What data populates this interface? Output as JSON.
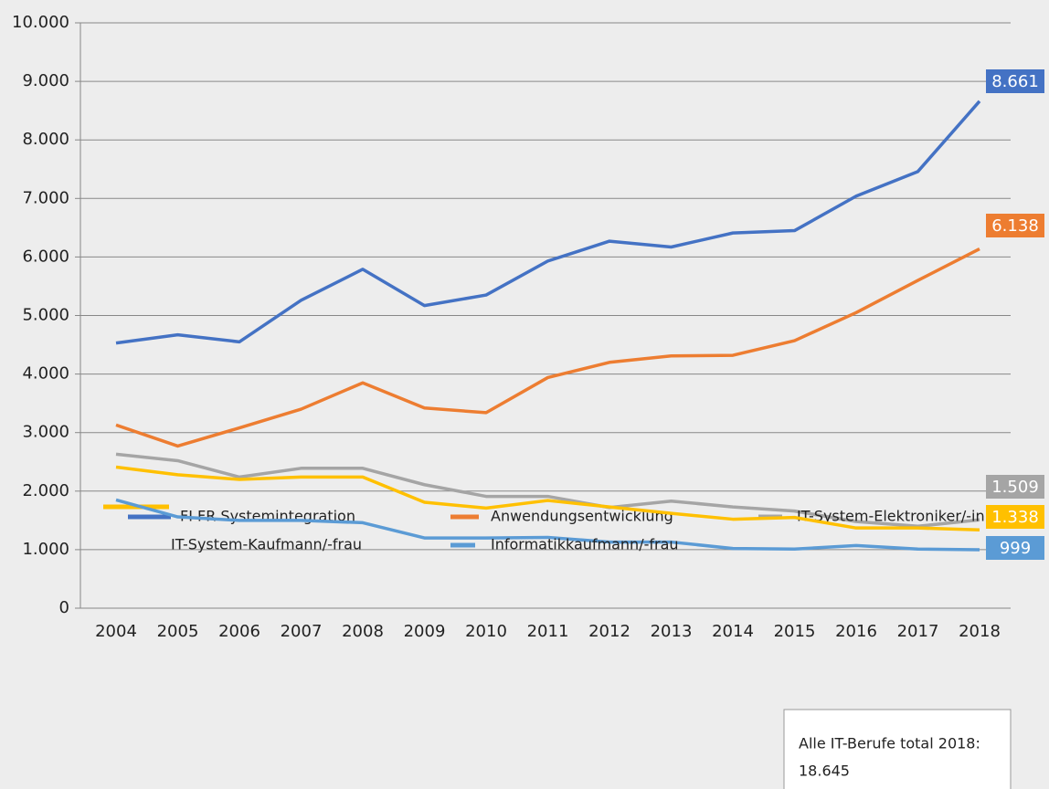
{
  "chart_data": {
    "type": "line",
    "categories": [
      "2004",
      "2005",
      "2006",
      "2007",
      "2008",
      "2009",
      "2010",
      "2011",
      "2012",
      "2013",
      "2014",
      "2015",
      "2016",
      "2017",
      "2018"
    ],
    "series": [
      {
        "name": "FI FR Systemintegration",
        "color": "#4472c4",
        "values": [
          4530,
          4670,
          4550,
          5260,
          5790,
          5170,
          5350,
          5930,
          6270,
          6170,
          6410,
          6450,
          7040,
          7460,
          8661
        ],
        "value_labels": [
          null,
          null,
          null,
          null,
          null,
          null,
          null,
          null,
          null,
          null,
          null,
          null,
          null,
          null,
          "8.661"
        ]
      },
      {
        "name": "Anwendungsentwicklung",
        "color": "#ed7d31",
        "values": [
          3130,
          2770,
          3080,
          3400,
          3850,
          3420,
          3340,
          3940,
          4200,
          4310,
          4320,
          4570,
          5050,
          5600,
          6138
        ],
        "value_labels": [
          null,
          null,
          null,
          null,
          null,
          null,
          null,
          null,
          null,
          null,
          null,
          null,
          null,
          null,
          "6.138"
        ]
      },
      {
        "name": "IT-System-Elektroniker/-in",
        "color": "#a5a5a5",
        "values": [
          2630,
          2520,
          2240,
          2390,
          2390,
          2110,
          1910,
          1910,
          1720,
          1830,
          1730,
          1660,
          1480,
          1400,
          1509
        ],
        "value_labels": [
          null,
          null,
          null,
          null,
          null,
          null,
          null,
          null,
          null,
          null,
          null,
          null,
          null,
          null,
          "1.509"
        ]
      },
      {
        "name": "IT-System-Kaufmann/-frau",
        "color": "#ffc000",
        "values": [
          2410,
          2280,
          2200,
          2240,
          2240,
          1810,
          1710,
          1840,
          1730,
          1620,
          1520,
          1550,
          1370,
          1370,
          1338
        ],
        "value_labels": [
          null,
          null,
          null,
          null,
          null,
          null,
          null,
          null,
          null,
          null,
          null,
          null,
          null,
          null,
          "1.338"
        ]
      },
      {
        "name": "Informatikkaufmann/-frau",
        "color": "#5b9bd5",
        "values": [
          1850,
          1560,
          1500,
          1500,
          1460,
          1200,
          1200,
          1210,
          1130,
          1130,
          1020,
          1010,
          1070,
          1010,
          999
        ],
        "value_labels": [
          null,
          null,
          null,
          null,
          null,
          null,
          null,
          null,
          null,
          null,
          null,
          null,
          null,
          null,
          "999"
        ]
      }
    ],
    "ylim": [
      0,
      10000
    ],
    "yticks": [
      0,
      {
        "value": 1000,
        "label": "1.000"
      },
      {
        "value": 2000,
        "label": "2.000"
      },
      {
        "value": 3000,
        "label": "3.000"
      },
      {
        "value": 4000,
        "label": "4.000"
      },
      {
        "value": 5000,
        "label": "5.000"
      },
      {
        "value": 6000,
        "label": "6.000"
      },
      {
        "value": 7000,
        "label": "7.000"
      },
      {
        "value": 8000,
        "label": "8.000"
      },
      {
        "value": 9000,
        "label": "9.000"
      },
      {
        "value": 10000,
        "label": "10.000"
      }
    ],
    "grid": true,
    "annotation": [
      "Alle IT-Berufe total 2018:",
      "18.645"
    ]
  }
}
